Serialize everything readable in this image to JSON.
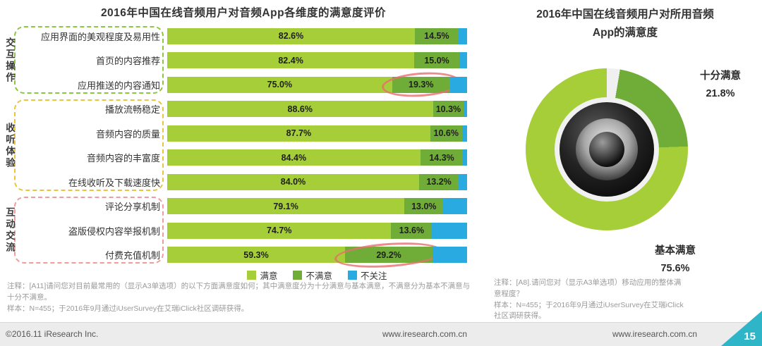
{
  "left_chart": {
    "title": "2016年中国在线音频用户对音频App各维度的满意度评价",
    "note": "注释：[A11]请问您对目前最常用的（显示A3单选项）的以下方面满意度如何；其中满意度分为十分满意与基本满意，不满意分为基本不满意与十分不满意。",
    "sample": "样本：N=455；于2016年9月通过iUserSurvey在艾瑞iClick社区调研获得。"
  },
  "right_chart": {
    "title_line1": "2016年中国在线音频用户对所用音频",
    "title_line2": "App的满意度",
    "callout_top_label": "十分满意",
    "callout_top_value": "21.8%",
    "callout_bottom_label": "基本满意",
    "callout_bottom_value": "75.6%",
    "note": "注释：[A8].请问您对（显示A3单选项）移动应用的整体满意程度？",
    "sample": "样本：N=455；于2016年9月通过iUserSurvey在艾瑞iClick社区调研获得。"
  },
  "footer": {
    "copyright": "©2016.11 iResearch Inc.",
    "site_left": "www.iresearch.com.cn",
    "site_right": "www.iresearch.com.cn",
    "page_number": "15"
  },
  "chart_data": [
    {
      "type": "bar",
      "orientation": "horizontal",
      "stacked": true,
      "unit": "%",
      "xlim": [
        0,
        100
      ],
      "legend_position": "bottom",
      "title": "2016年中国在线音频用户对音频App各维度的满意度评价",
      "categories": [
        "应用界面的美观程度及易用性",
        "首页的内容推荐",
        "应用推送的内容通知",
        "播放流畅稳定",
        "音频内容的质量",
        "音频内容的丰富度",
        "在线收听及下载速度快",
        "评论分享机制",
        "盗版侵权内容举报机制",
        "付费充值机制"
      ],
      "series": [
        {
          "name": "满意",
          "color": "#a6ce39",
          "show_labels": true,
          "values": [
            82.6,
            82.4,
            75.0,
            88.6,
            87.7,
            84.4,
            84.0,
            79.1,
            74.7,
            59.3
          ]
        },
        {
          "name": "不满意",
          "color": "#70ad38",
          "show_labels": true,
          "values": [
            14.5,
            15.0,
            19.3,
            10.3,
            10.6,
            14.3,
            13.2,
            13.0,
            13.6,
            29.2
          ]
        },
        {
          "name": "不关注",
          "color": "#29abe2",
          "show_labels": false,
          "estimated": true,
          "values": [
            2.9,
            2.6,
            5.7,
            1.1,
            1.7,
            1.3,
            2.8,
            7.9,
            11.7,
            11.5
          ]
        }
      ],
      "groups": [
        {
          "label": "交互操作",
          "start_row": 0,
          "row_count": 3,
          "border_color": "#8dc63f"
        },
        {
          "label": "收听体验",
          "start_row": 3,
          "row_count": 4,
          "border_color": "#e9c53c"
        },
        {
          "label": "互动交流",
          "start_row": 7,
          "row_count": 3,
          "border_color": "#f29b9b"
        }
      ],
      "annotations": [
        {
          "row_index": 2,
          "series_index": 1,
          "shape": "ellipse",
          "color": "#ef8f8f",
          "value_highlighted": "19.3%"
        },
        {
          "row_index": 9,
          "series_index": 1,
          "shape": "ellipse",
          "color": "#ef8f8f",
          "value_highlighted": "29.2%"
        }
      ]
    },
    {
      "type": "pie",
      "donut": true,
      "title": "2016年中国在线音频用户对所用音频App的满意度",
      "start_angle_deg": 9.4,
      "slices": [
        {
          "label": "十分满意",
          "value": 21.8,
          "color": "#70ad38"
        },
        {
          "label": "基本满意",
          "value": 75.6,
          "color": "#a6ce39"
        },
        {
          "label": "",
          "value": 2.6,
          "color": "#f0f0f0",
          "estimated": true
        }
      ]
    }
  ]
}
